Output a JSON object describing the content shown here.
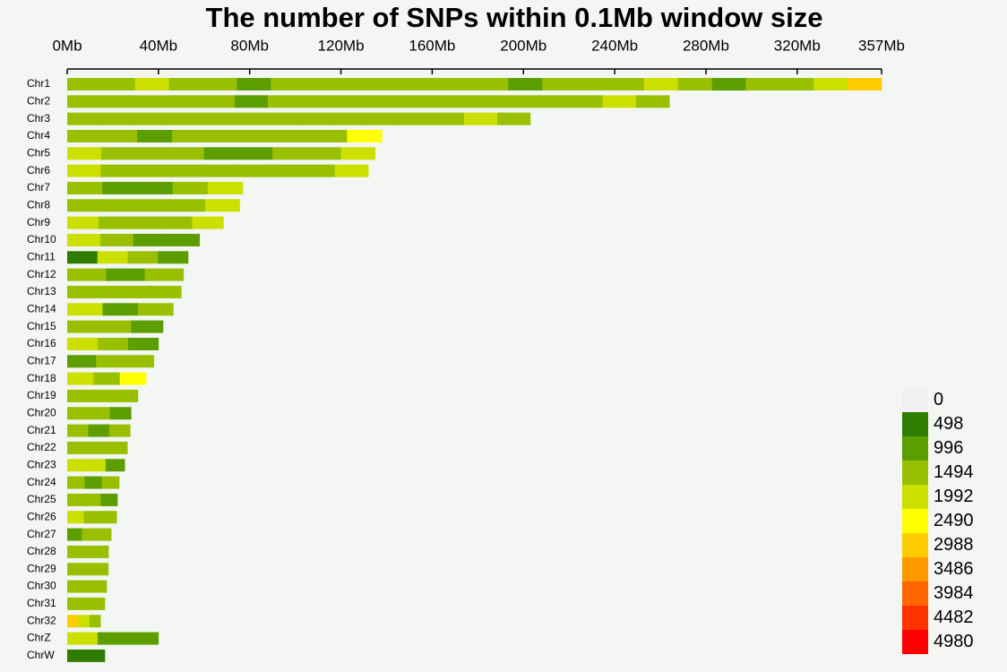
{
  "chart_data": {
    "type": "density-strip",
    "title": "The number of SNPs within 0.1Mb window size",
    "xlim": [
      0,
      357
    ],
    "xticks": [
      {
        "value": 0,
        "label": "0Mb"
      },
      {
        "value": 40,
        "label": "40Mb"
      },
      {
        "value": 80,
        "label": "80Mb"
      },
      {
        "value": 120,
        "label": "120Mb"
      },
      {
        "value": 160,
        "label": "160Mb"
      },
      {
        "value": 200,
        "label": "200Mb"
      },
      {
        "value": 240,
        "label": "240Mb"
      },
      {
        "value": 280,
        "label": "280Mb"
      },
      {
        "value": 320,
        "label": "320Mb"
      },
      {
        "value": 357,
        "label": "357Mb"
      }
    ],
    "legend": [
      {
        "value": 0,
        "color": "#f0f0f0"
      },
      {
        "value": 498,
        "color": "#2e7d00"
      },
      {
        "value": 996,
        "color": "#5c9e00"
      },
      {
        "value": 1494,
        "color": "#99c000"
      },
      {
        "value": 1992,
        "color": "#cce000"
      },
      {
        "value": 2490,
        "color": "#ffff00"
      },
      {
        "value": 2988,
        "color": "#ffcc00"
      },
      {
        "value": 3486,
        "color": "#ff9900"
      },
      {
        "value": 3984,
        "color": "#ff6600"
      },
      {
        "value": 4482,
        "color": "#ff3300"
      },
      {
        "value": 4980,
        "color": "#ff0000"
      }
    ],
    "chromosomes": [
      {
        "name": "Chr1",
        "length": 357,
        "values": [
          1600,
          1400,
          1800,
          1300,
          1500,
          1200,
          1700,
          1400,
          1600,
          1300,
          1500,
          1400,
          1700,
          1200,
          1600,
          1500,
          1300,
          1800,
          1400,
          1100,
          1600,
          1500,
          2100,
          2800
        ]
      },
      {
        "name": "Chr2",
        "length": 264,
        "values": [
          1700,
          1500,
          1300,
          1400,
          1600,
          1200,
          1500,
          1400,
          1300,
          1600,
          1500,
          1400,
          1700,
          1300,
          1600,
          1500,
          1800,
          1500
        ]
      },
      {
        "name": "Chr3",
        "length": 203,
        "values": [
          1600,
          1500,
          1400,
          1600,
          1300,
          1500,
          1400,
          1700,
          1500,
          1300,
          1600,
          1500,
          1900,
          1700
        ]
      },
      {
        "name": "Chr4",
        "length": 138,
        "values": [
          1500,
          1400,
          1200,
          1500,
          1600,
          1300,
          1500,
          1400,
          2300
        ]
      },
      {
        "name": "Chr5",
        "length": 135,
        "values": [
          1800,
          1500,
          1600,
          1400,
          1200,
          900,
          1300,
          1600,
          2000
        ]
      },
      {
        "name": "Chr6",
        "length": 132,
        "values": [
          1900,
          1600,
          1500,
          1400,
          1600,
          1500,
          1400,
          1700,
          1800
        ]
      },
      {
        "name": "Chr7",
        "length": 77,
        "values": [
          1600,
          900,
          1000,
          1300,
          2200
        ]
      },
      {
        "name": "Chr8",
        "length": 75.6,
        "values": [
          1700,
          1500,
          1400,
          1300,
          1900
        ]
      },
      {
        "name": "Chr9",
        "length": 68.5,
        "values": [
          1800,
          1500,
          1400,
          1300,
          2100
        ]
      },
      {
        "name": "Chr10",
        "length": 58,
        "values": [
          1900,
          1300,
          1200,
          1100
        ]
      },
      {
        "name": "Chr11",
        "length": 53,
        "values": [
          700,
          1900,
          1500,
          1200
        ]
      },
      {
        "name": "Chr12",
        "length": 51,
        "values": [
          1600,
          1100,
          1400
        ]
      },
      {
        "name": "Chr13",
        "length": 50,
        "values": [
          1500,
          1300,
          1400
        ]
      },
      {
        "name": "Chr14",
        "length": 46.5,
        "values": [
          1800,
          1200,
          1500
        ]
      },
      {
        "name": "Chr15",
        "length": 42,
        "values": [
          1700,
          1300,
          1000
        ]
      },
      {
        "name": "Chr16",
        "length": 40,
        "values": [
          1900,
          1400,
          1200
        ]
      },
      {
        "name": "Chr17",
        "length": 38,
        "values": [
          1100,
          1600,
          1500
        ]
      },
      {
        "name": "Chr18",
        "length": 34.6,
        "values": [
          2100,
          1500,
          2400
        ]
      },
      {
        "name": "Chr19",
        "length": 31,
        "values": [
          1500,
          1400,
          1700
        ]
      },
      {
        "name": "Chr20",
        "length": 28,
        "values": [
          1300,
          1500,
          1200
        ]
      },
      {
        "name": "Chr21",
        "length": 27.6,
        "values": [
          1400,
          1200,
          1300
        ]
      },
      {
        "name": "Chr22",
        "length": 26.4,
        "values": [
          1500,
          1300,
          1400
        ]
      },
      {
        "name": "Chr23",
        "length": 25.2,
        "values": [
          2000,
          1800,
          1100
        ]
      },
      {
        "name": "Chr24",
        "length": 22.8,
        "values": [
          1300,
          900,
          1500
        ]
      },
      {
        "name": "Chr25",
        "length": 22,
        "values": [
          1600,
          1500,
          1100
        ]
      },
      {
        "name": "Chr26",
        "length": 21.7,
        "values": [
          1900,
          1400,
          1300
        ]
      },
      {
        "name": "Chr27",
        "length": 19.3,
        "values": [
          1200,
          1500,
          1400
        ]
      },
      {
        "name": "Chr28",
        "length": 18.1,
        "values": [
          1400,
          1600,
          1300
        ]
      },
      {
        "name": "Chr29",
        "length": 18,
        "values": [
          1300,
          1500,
          1400
        ]
      },
      {
        "name": "Chr30",
        "length": 17.3,
        "values": [
          1500,
          1600,
          1400
        ]
      },
      {
        "name": "Chr31",
        "length": 16.5,
        "values": [
          1400,
          1300,
          1500
        ]
      },
      {
        "name": "Chr32",
        "length": 14.6,
        "values": [
          2900,
          2200,
          1600
        ]
      },
      {
        "name": "ChrZ",
        "length": 40,
        "values": [
          1800,
          1200,
          1100
        ]
      },
      {
        "name": "ChrW",
        "length": 16.5,
        "values": [
          450,
          400,
          450
        ]
      }
    ]
  }
}
